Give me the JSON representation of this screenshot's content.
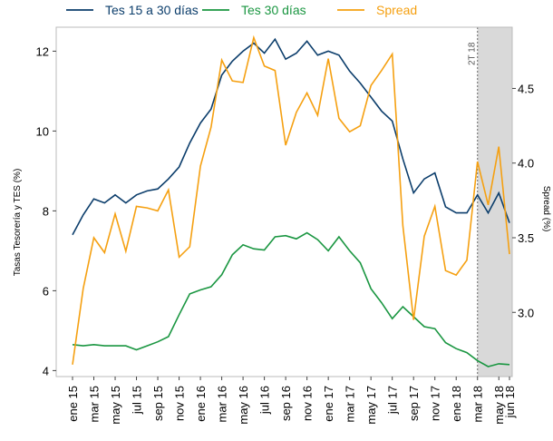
{
  "chart_data": {
    "type": "line",
    "y_label": "Tasas Tesorería y TES (%)",
    "y2_label": "Spread (%)",
    "annotation": "2T 18",
    "shade_from": 38,
    "categories": [
      "ene 15",
      null,
      "mar 15",
      null,
      "may 15",
      null,
      "jul 15",
      null,
      "sep 15",
      null,
      "nov 15",
      null,
      "ene 16",
      null,
      "mar 16",
      null,
      "may 16",
      null,
      "jul 16",
      null,
      "sep 16",
      null,
      "nov 16",
      null,
      "ene 17",
      null,
      "mar 17",
      null,
      "may 17",
      null,
      "jul 17",
      null,
      "sep 17",
      null,
      "nov 17",
      null,
      "ene 18",
      null,
      "mar 18",
      null,
      "may 18",
      "jun 18"
    ],
    "series": [
      {
        "name": "Tes 15 a 30 días",
        "color": "#0b3d6b",
        "axis": "y",
        "values": [
          7.4,
          7.9,
          8.3,
          8.2,
          8.4,
          8.2,
          8.4,
          8.5,
          8.55,
          8.8,
          9.1,
          9.7,
          10.2,
          10.55,
          11.4,
          11.75,
          12.0,
          12.2,
          11.95,
          12.3,
          11.8,
          11.95,
          12.25,
          11.9,
          12.0,
          11.9,
          11.5,
          11.2,
          10.85,
          10.5,
          10.25,
          9.3,
          8.45,
          8.8,
          8.95,
          8.1,
          7.95,
          7.95,
          8.4,
          7.95,
          8.45,
          7.7
        ]
      },
      {
        "name": "Tes 30 días",
        "color": "#1a9641",
        "axis": "y",
        "values": [
          4.65,
          4.62,
          4.65,
          4.62,
          4.62,
          4.62,
          4.52,
          4.62,
          4.72,
          4.85,
          5.4,
          5.92,
          6.02,
          6.1,
          6.4,
          6.9,
          7.15,
          7.05,
          7.02,
          7.35,
          7.38,
          7.3,
          7.45,
          7.28,
          7.0,
          7.35,
          7.0,
          6.7,
          6.05,
          5.7,
          5.3,
          5.6,
          5.35,
          5.1,
          5.05,
          4.7,
          4.55,
          4.45,
          4.25,
          4.1,
          4.17,
          4.15
        ]
      },
      {
        "name": "Spread",
        "color": "#f5a011",
        "axis": "y2",
        "values": [
          2.65,
          3.16,
          3.5,
          3.4,
          3.66,
          3.41,
          3.71,
          3.7,
          3.68,
          3.82,
          3.37,
          3.44,
          3.98,
          4.24,
          4.69,
          4.55,
          4.54,
          4.84,
          4.65,
          4.62,
          4.12,
          4.34,
          4.47,
          4.32,
          4.7,
          4.3,
          4.21,
          4.25,
          4.52,
          4.62,
          4.73,
          3.58,
          2.95,
          3.51,
          3.71,
          3.28,
          3.25,
          3.35,
          4.01,
          3.72,
          4.11,
          3.39
        ]
      }
    ],
    "ylim": [
      3.85,
      12.6
    ],
    "yticks": [
      4,
      6,
      8,
      10,
      12
    ],
    "y2lim": [
      2.57,
      4.91
    ],
    "y2ticks": [
      {
        "value": 3.0,
        "label": "3.0"
      },
      {
        "value": 3.5,
        "label": "3.5"
      },
      {
        "value": 4.0,
        "label": "4.0"
      },
      {
        "value": 4.5,
        "label": "4.5"
      }
    ]
  }
}
